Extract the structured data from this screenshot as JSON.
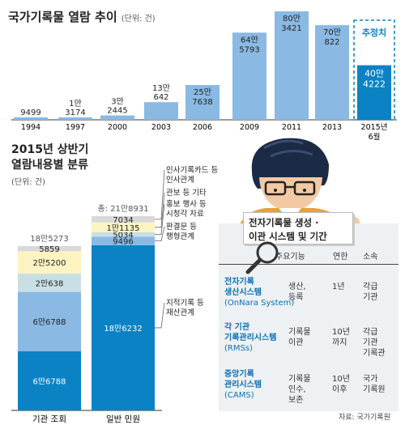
{
  "chart_data": [
    {
      "type": "bar",
      "title": "국가기록물 열람 추이",
      "unit": "(단위: 건)",
      "categories": [
        "1994",
        "1997",
        "2000",
        "2003",
        "2006",
        "2009",
        "2011",
        "2013",
        "2015년 6월"
      ],
      "values": [
        9499,
        13174,
        32445,
        130642,
        257638,
        645793,
        803421,
        700822,
        404222
      ],
      "labels": [
        [
          "9499"
        ],
        [
          "1만",
          "3174"
        ],
        [
          "3만",
          "2445"
        ],
        [
          "13만",
          "642"
        ],
        [
          "25만",
          "7638"
        ],
        [
          "64만",
          "5793"
        ],
        [
          "80만",
          "3421"
        ],
        [
          "70만",
          "822"
        ],
        [
          "40만",
          "4222"
        ]
      ],
      "estimate_label": "추정치",
      "colors": {
        "bar": "#8ab9e3",
        "bar_last": "#0a82c4",
        "estimate": "#0a82c4"
      }
    },
    {
      "type": "bar",
      "stacked": true,
      "title": [
        "2015년 상반기",
        "열람내용별 분류"
      ],
      "unit": "(단위: 건)",
      "categories": [
        "기관 조회",
        "일반 민원"
      ],
      "totals": [
        "18만5273",
        "총: 21만8931"
      ],
      "series": [
        {
          "name": "지적기록 등 재산관계",
          "values": [
            66788,
            186232
          ],
          "labels": [
            "6만6788",
            "18만6232"
          ],
          "color": "#0a82c4"
        },
        {
          "name": "시청각 자료",
          "values": [
            66788,
            9496
          ],
          "labels": [
            "6만6788",
            "9496"
          ],
          "color": "#8ab9e3"
        },
        {
          "name": "판결문 등 행형관계",
          "values": [
            20638,
            0
          ],
          "labels": [
            "2만638",
            ""
          ],
          "color": "#c9dfe6"
        },
        {
          "name": "홍보 행사 등",
          "values": [
            0,
            5034
          ],
          "labels": [
            "",
            "5034"
          ],
          "color": "#c9dfe6"
        },
        {
          "name": "관보 등 기타",
          "values": [
            25200,
            11135
          ],
          "labels": [
            "2만5200",
            "1만1135"
          ],
          "color": "#fdf4c2"
        },
        {
          "name": "인사기록카드 등 인사관계",
          "values": [
            5859,
            7034
          ],
          "labels": [
            "5859",
            "7034"
          ],
          "color": "#d9d9d9"
        }
      ],
      "right_labels": [
        "인사기록카드 등",
        "인사관계",
        "관보 등 기타",
        "홍보 행사 등",
        "시청각 자료",
        "판결문 등",
        "행형관계",
        "지적기록 등",
        "재산관계"
      ]
    }
  ],
  "infobox": {
    "title_line1": "전자기록물 생성 ·",
    "title_line2": "이관 시스템 및 기간",
    "headers": [
      "주요기능",
      "연한",
      "소속"
    ],
    "rows": [
      {
        "name": [
          "전자기록",
          "생산시스템"
        ],
        "sub": "(OnNara System)",
        "function": [
          "생산,",
          "등록"
        ],
        "period": [
          "1년"
        ],
        "org": [
          "각급",
          "기관"
        ]
      },
      {
        "name": [
          "각 기관",
          "기록관리시스템"
        ],
        "sub": "(RMSs)",
        "function": [
          "기록물",
          "이관"
        ],
        "period": [
          "10년",
          "까지"
        ],
        "org": [
          "각급",
          "기관",
          "기록관"
        ]
      },
      {
        "name": [
          "중앙기록",
          "관리시스템"
        ],
        "sub": "(CAMS)",
        "function": [
          "기록물",
          "인수,",
          "보존"
        ],
        "period": [
          "10년",
          "이후"
        ],
        "org": [
          "국가",
          "기록원"
        ]
      }
    ]
  },
  "source": "자료: 국가기록원"
}
